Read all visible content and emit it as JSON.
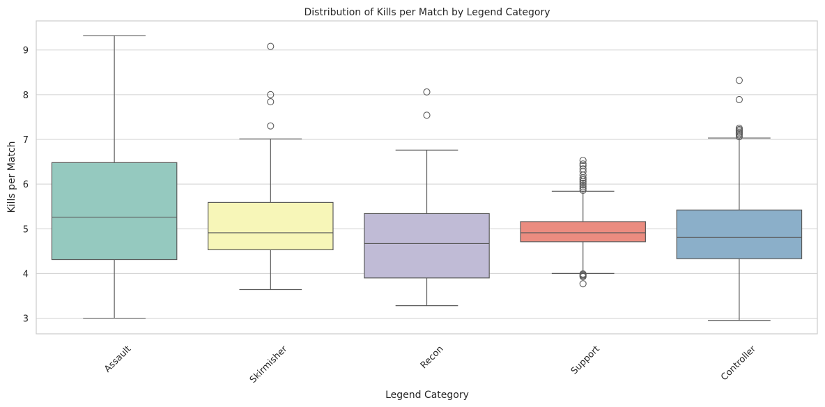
{
  "chart_data": {
    "type": "box",
    "title": "Distribution of Kills per Match by Legend Category",
    "xlabel": "Legend Category",
    "ylabel": "Kills per Match",
    "ylim": [
      2.65,
      9.65
    ],
    "yticks": [
      3,
      4,
      5,
      6,
      7,
      8,
      9
    ],
    "grid": "horizontal",
    "categories": [
      "Assault",
      "Skirmisher",
      "Recon",
      "Support",
      "Controller"
    ],
    "boxes": [
      {
        "category": "Assault",
        "min": 3.0,
        "q1": 4.31,
        "median": 5.26,
        "q3": 6.48,
        "max": 9.32,
        "outliers": [],
        "color": "#95c9bf"
      },
      {
        "category": "Skirmisher",
        "min": 3.64,
        "q1": 4.53,
        "median": 4.91,
        "q3": 5.59,
        "max": 7.01,
        "outliers": [
          7.3,
          7.84,
          8.0,
          9.08
        ],
        "color": "#f7f6b8"
      },
      {
        "category": "Recon",
        "min": 3.28,
        "q1": 3.9,
        "median": 4.67,
        "q3": 5.34,
        "max": 6.76,
        "outliers": [
          7.54,
          8.06
        ],
        "color": "#c0bbd6"
      },
      {
        "category": "Support",
        "min": 4.0,
        "q1": 4.71,
        "median": 4.91,
        "q3": 5.16,
        "max": 5.84,
        "outliers": [
          3.77,
          3.93,
          3.95,
          3.97,
          3.99,
          5.86,
          5.9,
          5.94,
          5.98,
          6.02,
          6.06,
          6.1,
          6.14,
          6.2,
          6.28,
          6.34,
          6.41,
          6.45,
          6.53
        ],
        "color": "#eb8c80"
      },
      {
        "category": "Controller",
        "min": 2.95,
        "q1": 4.33,
        "median": 4.81,
        "q3": 5.42,
        "max": 7.03,
        "outliers": [
          7.06,
          7.1,
          7.13,
          7.16,
          7.19,
          7.22,
          7.25,
          7.89,
          8.32
        ],
        "color": "#8bafc9"
      }
    ]
  }
}
